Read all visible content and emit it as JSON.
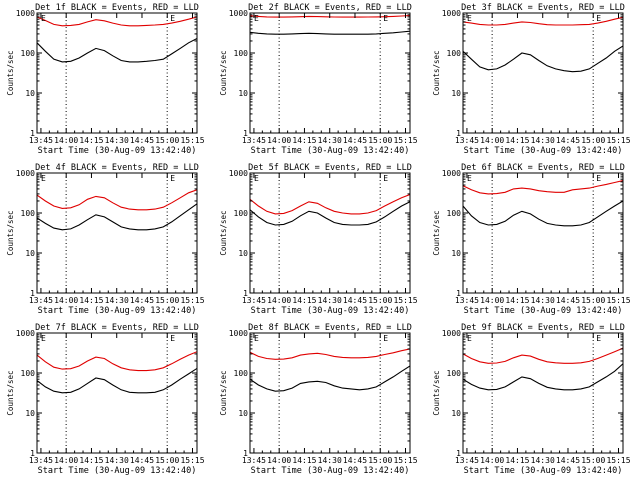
{
  "figure": {
    "xlabel": "Start Time (30-Aug-09 13:42:40)",
    "ylabel": "Counts/sec",
    "colors": {
      "events": "#000000",
      "lld": "#e00000",
      "axis": "#000000",
      "background": "#ffffff"
    }
  },
  "chart_data": [
    {
      "type": "line",
      "title": "Det 1f BLACK = Events, RED = LLD",
      "xlabel": "Start Time (30-Aug-09 13:42:40)",
      "ylabel": "Counts/sec",
      "y_scale": "log",
      "ylim": [
        1,
        1000
      ],
      "x_unit": "minutes since 13:42:40",
      "xlim": [
        0,
        95
      ],
      "xticks": [
        "13:45",
        "14:00",
        "14:15",
        "14:30",
        "14:45",
        "15:00",
        "15:15"
      ],
      "yticks": [
        "1",
        "10",
        "100",
        "1000"
      ],
      "x": [
        0,
        5,
        10,
        15,
        20,
        25,
        30,
        35,
        40,
        45,
        50,
        55,
        60,
        65,
        70,
        75,
        80,
        85,
        90,
        95
      ],
      "series": [
        {
          "name": "Events",
          "color": "#000000",
          "values": [
            180,
            110,
            70,
            60,
            62,
            75,
            100,
            130,
            115,
            85,
            65,
            60,
            60,
            62,
            65,
            70,
            95,
            130,
            180,
            230
          ]
        },
        {
          "name": "LLD",
          "color": "#e00000",
          "values": [
            800,
            650,
            520,
            480,
            490,
            520,
            600,
            680,
            640,
            560,
            500,
            480,
            480,
            490,
            500,
            520,
            560,
            620,
            700,
            800
          ]
        }
      ],
      "markers": [
        "E",
        "E"
      ],
      "vlines": [
        17.3,
        77.3
      ]
    },
    {
      "type": "line",
      "title": "Det 2f BLACK = Events, RED = LLD",
      "xlabel": "Start Time (30-Aug-09 13:42:40)",
      "ylabel": "Counts/sec",
      "y_scale": "log",
      "ylim": [
        1,
        1000
      ],
      "x_unit": "minutes since 13:42:40",
      "xlim": [
        0,
        95
      ],
      "xticks": [
        "13:45",
        "14:00",
        "14:15",
        "14:30",
        "14:45",
        "15:00",
        "15:15"
      ],
      "yticks": [
        "1",
        "10",
        "100",
        "1000"
      ],
      "x": [
        0,
        5,
        10,
        15,
        20,
        25,
        30,
        35,
        40,
        45,
        50,
        55,
        60,
        65,
        70,
        75,
        80,
        85,
        90,
        95
      ],
      "series": [
        {
          "name": "Events",
          "color": "#000000",
          "values": [
            330,
            310,
            300,
            295,
            295,
            300,
            305,
            310,
            305,
            300,
            295,
            295,
            295,
            295,
            295,
            300,
            310,
            320,
            335,
            350
          ]
        },
        {
          "name": "LLD",
          "color": "#e00000",
          "values": [
            850,
            820,
            800,
            790,
            790,
            800,
            810,
            820,
            815,
            805,
            795,
            790,
            790,
            790,
            795,
            800,
            810,
            820,
            840,
            860
          ]
        }
      ],
      "markers": [
        "E",
        "E"
      ],
      "vlines": [
        17.3,
        77.3
      ]
    },
    {
      "type": "line",
      "title": "Det 3f BLACK = Events, RED = LLD",
      "xlabel": "Start Time (30-Aug-09 13:42:40)",
      "ylabel": "Counts/sec",
      "y_scale": "log",
      "ylim": [
        1,
        1000
      ],
      "x_unit": "minutes since 13:42:40",
      "xlim": [
        0,
        95
      ],
      "xticks": [
        "13:45",
        "14:00",
        "14:15",
        "14:30",
        "14:45",
        "15:00",
        "15:15"
      ],
      "yticks": [
        "1",
        "10",
        "100",
        "1000"
      ],
      "x": [
        0,
        5,
        10,
        15,
        20,
        25,
        30,
        35,
        40,
        45,
        50,
        55,
        60,
        65,
        70,
        75,
        80,
        85,
        90,
        95
      ],
      "series": [
        {
          "name": "Events",
          "color": "#000000",
          "values": [
            110,
            70,
            45,
            38,
            40,
            50,
            70,
            100,
            90,
            65,
            48,
            40,
            36,
            34,
            35,
            40,
            55,
            75,
            110,
            150
          ]
        },
        {
          "name": "LLD",
          "color": "#e00000",
          "values": [
            600,
            560,
            520,
            500,
            500,
            520,
            560,
            600,
            580,
            540,
            510,
            500,
            500,
            500,
            510,
            520,
            560,
            620,
            700,
            780
          ]
        }
      ],
      "markers": [
        "E",
        "E"
      ],
      "vlines": [
        17.3,
        77.3
      ]
    },
    {
      "type": "line",
      "title": "Det 4f BLACK = Events, RED = LLD",
      "xlabel": "Start Time (30-Aug-09 13:42:40)",
      "ylabel": "Counts/sec",
      "y_scale": "log",
      "ylim": [
        1,
        1000
      ],
      "x_unit": "minutes since 13:42:40",
      "xlim": [
        0,
        95
      ],
      "xticks": [
        "13:45",
        "14:00",
        "14:15",
        "14:30",
        "14:45",
        "15:00",
        "15:15"
      ],
      "yticks": [
        "1",
        "10",
        "100",
        "1000"
      ],
      "x": [
        0,
        5,
        10,
        15,
        20,
        25,
        30,
        35,
        40,
        45,
        50,
        55,
        60,
        65,
        70,
        75,
        80,
        85,
        90,
        95
      ],
      "series": [
        {
          "name": "Events",
          "color": "#000000",
          "values": [
            75,
            55,
            42,
            38,
            40,
            50,
            68,
            90,
            80,
            60,
            45,
            40,
            38,
            38,
            40,
            45,
            60,
            85,
            120,
            170
          ]
        },
        {
          "name": "LLD",
          "color": "#e00000",
          "values": [
            280,
            200,
            150,
            130,
            135,
            160,
            220,
            260,
            240,
            180,
            140,
            125,
            120,
            120,
            125,
            140,
            180,
            240,
            320,
            380
          ]
        }
      ],
      "markers": [
        "E",
        "E"
      ],
      "vlines": [
        17.3,
        77.3
      ]
    },
    {
      "type": "line",
      "title": "Det 5f BLACK = Events, RED = LLD",
      "xlabel": "Start Time (30-Aug-09 13:42:40)",
      "ylabel": "Counts/sec",
      "y_scale": "log",
      "ylim": [
        1,
        1000
      ],
      "x_unit": "minutes since 13:42:40",
      "xlim": [
        0,
        95
      ],
      "xticks": [
        "13:45",
        "14:00",
        "14:15",
        "14:30",
        "14:45",
        "15:00",
        "15:15"
      ],
      "yticks": [
        "1",
        "10",
        "100",
        "1000"
      ],
      "x": [
        0,
        5,
        10,
        15,
        20,
        25,
        30,
        35,
        40,
        45,
        50,
        55,
        60,
        65,
        70,
        75,
        80,
        85,
        90,
        95
      ],
      "series": [
        {
          "name": "Events",
          "color": "#000000",
          "values": [
            120,
            80,
            58,
            50,
            52,
            62,
            85,
            110,
            100,
            75,
            58,
            52,
            50,
            50,
            52,
            60,
            80,
            110,
            150,
            190
          ]
        },
        {
          "name": "LLD",
          "color": "#e00000",
          "values": [
            220,
            150,
            110,
            95,
            98,
            115,
            150,
            190,
            175,
            135,
            110,
            100,
            95,
            95,
            100,
            115,
            150,
            190,
            240,
            290
          ]
        }
      ],
      "markers": [
        "E",
        "E"
      ],
      "vlines": [
        17.3,
        77.3
      ]
    },
    {
      "type": "line",
      "title": "Det 6f BLACK = Events, RED = LLD",
      "xlabel": "Start Time (30-Aug-09 13:42:40)",
      "ylabel": "Counts/sec",
      "y_scale": "log",
      "ylim": [
        1,
        1000
      ],
      "x_unit": "minutes since 13:42:40",
      "xlim": [
        0,
        95
      ],
      "xticks": [
        "13:45",
        "14:00",
        "14:15",
        "14:30",
        "14:45",
        "15:00",
        "15:15"
      ],
      "yticks": [
        "1",
        "10",
        "100",
        "1000"
      ],
      "x": [
        0,
        5,
        10,
        15,
        20,
        25,
        30,
        35,
        40,
        45,
        50,
        55,
        60,
        65,
        70,
        75,
        80,
        85,
        90,
        95
      ],
      "series": [
        {
          "name": "Events",
          "color": "#000000",
          "values": [
            150,
            85,
            58,
            50,
            52,
            62,
            88,
            110,
            95,
            70,
            55,
            50,
            48,
            48,
            50,
            58,
            80,
            110,
            150,
            200
          ]
        },
        {
          "name": "LLD",
          "color": "#e00000",
          "values": [
            480,
            380,
            320,
            300,
            305,
            330,
            400,
            420,
            400,
            360,
            340,
            330,
            330,
            380,
            400,
            420,
            470,
            520,
            580,
            650
          ]
        }
      ],
      "markers": [
        "E",
        "E"
      ],
      "vlines": [
        17.3,
        77.3
      ]
    },
    {
      "type": "line",
      "title": "Det 7f BLACK = Events, RED = LLD",
      "xlabel": "Start Time (30-Aug-09 13:42:40)",
      "ylabel": "Counts/sec",
      "y_scale": "log",
      "ylim": [
        1,
        1000
      ],
      "x_unit": "minutes since 13:42:40",
      "xlim": [
        0,
        95
      ],
      "xticks": [
        "13:45",
        "14:00",
        "14:15",
        "14:30",
        "14:45",
        "15:00",
        "15:15"
      ],
      "yticks": [
        "1",
        "10",
        "100",
        "1000"
      ],
      "x": [
        0,
        5,
        10,
        15,
        20,
        25,
        30,
        35,
        40,
        45,
        50,
        55,
        60,
        65,
        70,
        75,
        80,
        85,
        90,
        95
      ],
      "series": [
        {
          "name": "Events",
          "color": "#000000",
          "values": [
            65,
            45,
            35,
            32,
            33,
            40,
            55,
            75,
            68,
            50,
            38,
            33,
            32,
            32,
            33,
            38,
            50,
            70,
            95,
            130
          ]
        },
        {
          "name": "LLD",
          "color": "#e00000",
          "values": [
            280,
            190,
            140,
            125,
            128,
            150,
            200,
            250,
            230,
            170,
            135,
            120,
            115,
            115,
            120,
            135,
            170,
            220,
            280,
            340
          ]
        }
      ],
      "markers": [
        "E",
        "E"
      ],
      "vlines": [
        17.3,
        77.3
      ]
    },
    {
      "type": "line",
      "title": "Det 8f BLACK = Events, RED = LLD",
      "xlabel": "Start Time (30-Aug-09 13:42:40)",
      "ylabel": "Counts/sec",
      "y_scale": "log",
      "ylim": [
        1,
        1000
      ],
      "x_unit": "minutes since 13:42:40",
      "xlim": [
        0,
        95
      ],
      "xticks": [
        "13:45",
        "14:00",
        "14:15",
        "14:30",
        "14:45",
        "15:00",
        "15:15"
      ],
      "yticks": [
        "1",
        "10",
        "100",
        "1000"
      ],
      "x": [
        0,
        5,
        10,
        15,
        20,
        25,
        30,
        35,
        40,
        45,
        50,
        55,
        60,
        65,
        70,
        75,
        80,
        85,
        90,
        95
      ],
      "series": [
        {
          "name": "Events",
          "color": "#000000",
          "values": [
            70,
            50,
            40,
            35,
            36,
            42,
            55,
            60,
            62,
            58,
            48,
            42,
            40,
            38,
            40,
            45,
            60,
            80,
            110,
            150
          ]
        },
        {
          "name": "LLD",
          "color": "#e00000",
          "values": [
            330,
            260,
            230,
            220,
            222,
            240,
            280,
            300,
            310,
            290,
            260,
            245,
            240,
            240,
            245,
            260,
            290,
            320,
            360,
            400
          ]
        }
      ],
      "markers": [
        "E",
        "E"
      ],
      "vlines": [
        17.3,
        77.3
      ]
    },
    {
      "type": "line",
      "title": "Det 9f BLACK = Events, RED = LLD",
      "xlabel": "Start Time (30-Aug-09 13:42:40)",
      "ylabel": "Counts/sec",
      "y_scale": "log",
      "ylim": [
        1,
        1000
      ],
      "x_unit": "minutes since 13:42:40",
      "xlim": [
        0,
        95
      ],
      "xticks": [
        "13:45",
        "14:00",
        "14:15",
        "14:30",
        "14:45",
        "15:00",
        "15:15"
      ],
      "yticks": [
        "1",
        "10",
        "100",
        "1000"
      ],
      "x": [
        0,
        5,
        10,
        15,
        20,
        25,
        30,
        35,
        40,
        45,
        50,
        55,
        60,
        65,
        70,
        75,
        80,
        85,
        90,
        95
      ],
      "series": [
        {
          "name": "Events",
          "color": "#000000",
          "values": [
            70,
            52,
            42,
            38,
            39,
            45,
            60,
            80,
            72,
            55,
            44,
            40,
            38,
            38,
            40,
            45,
            60,
            80,
            110,
            170
          ]
        },
        {
          "name": "LLD",
          "color": "#e00000",
          "values": [
            300,
            230,
            190,
            175,
            178,
            195,
            240,
            280,
            265,
            220,
            190,
            180,
            175,
            175,
            180,
            195,
            230,
            280,
            340,
            420
          ]
        }
      ],
      "markers": [
        "E",
        "E"
      ],
      "vlines": [
        17.3,
        77.3
      ]
    }
  ]
}
